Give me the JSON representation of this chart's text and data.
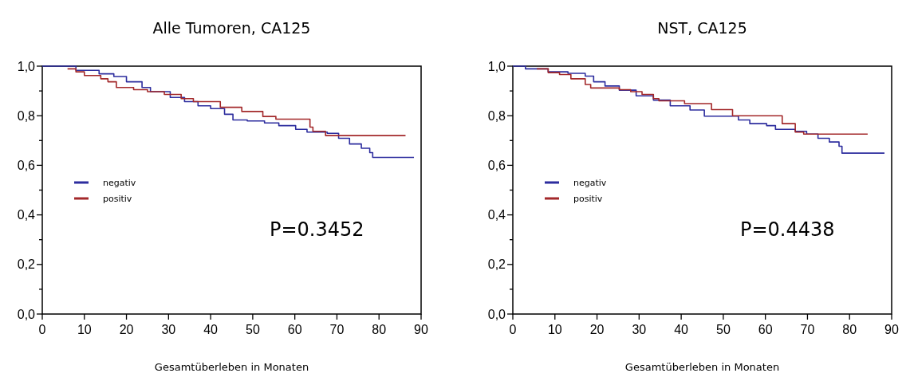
{
  "chart_data": [
    {
      "type": "step",
      "title": "Alle Tumoren, CA125",
      "xlabel": "Gesamtüberleben in Monaten",
      "xlim": [
        0,
        90
      ],
      "xticks": [
        0,
        10,
        20,
        30,
        40,
        50,
        60,
        70,
        80,
        90
      ],
      "ylim": [
        0,
        1
      ],
      "yticks": [
        {
          "value": 0,
          "label": "0,0"
        },
        {
          "value": 0.1,
          "label": null
        },
        {
          "value": 0.2,
          "label": "0,2"
        },
        {
          "value": 0.3,
          "label": null
        },
        {
          "value": 0.4,
          "label": "0,4"
        },
        {
          "value": 0.5,
          "label": null
        },
        {
          "value": 0.6,
          "label": "0,6"
        },
        {
          "value": 0.7,
          "label": null
        },
        {
          "value": 0.8,
          "label": "0,8"
        },
        {
          "value": 0.9,
          "label": null
        },
        {
          "value": 1,
          "label": "1,0"
        }
      ],
      "grid": false,
      "legend": "bottom left",
      "annotations": [
        "P=0.3452"
      ],
      "series": [
        {
          "name": "negativ",
          "color": "#2d2d9e",
          "x": [
            0,
            8,
            13.5,
            17,
            20,
            23.7,
            25.7,
            30.4,
            33.8,
            37,
            40,
            43.3,
            45.3,
            48.7,
            52.8,
            56.2,
            60.2,
            62.9,
            67.7,
            70.4,
            73,
            75.8,
            77.8,
            78.5,
            88.3
          ],
          "values": [
            1,
            0.983,
            0.969,
            0.958,
            0.937,
            0.914,
            0.897,
            0.874,
            0.857,
            0.84,
            0.829,
            0.806,
            0.783,
            0.779,
            0.771,
            0.76,
            0.745,
            0.734,
            0.729,
            0.709,
            0.686,
            0.669,
            0.651,
            0.632,
            0.632
          ]
        },
        {
          "name": "positiv",
          "color": "#a3282a",
          "x": [
            6,
            8,
            10,
            13.9,
            15.6,
            17.6,
            21.7,
            25,
            29,
            33,
            35.9,
            42.3,
            47.4,
            52.4,
            55.5,
            63.6,
            64.3,
            67.3,
            86.3
          ],
          "values": [
            0.989,
            0.977,
            0.962,
            0.949,
            0.937,
            0.914,
            0.905,
            0.897,
            0.886,
            0.869,
            0.857,
            0.834,
            0.817,
            0.797,
            0.786,
            0.754,
            0.737,
            0.72,
            0.72
          ]
        }
      ]
    },
    {
      "type": "step",
      "title": "NST, CA125",
      "xlabel": "Gesamtüberleben in Monaten",
      "xlim": [
        0,
        90
      ],
      "xticks": [
        0,
        10,
        20,
        30,
        40,
        50,
        60,
        70,
        80,
        90
      ],
      "ylim": [
        0,
        1
      ],
      "yticks": [
        {
          "value": 0,
          "label": "0,0"
        },
        {
          "value": 0.1,
          "label": null
        },
        {
          "value": 0.2,
          "label": "0,2"
        },
        {
          "value": 0.3,
          "label": null
        },
        {
          "value": 0.4,
          "label": "0,4"
        },
        {
          "value": 0.5,
          "label": null
        },
        {
          "value": 0.6,
          "label": "0,6"
        },
        {
          "value": 0.7,
          "label": null
        },
        {
          "value": 0.8,
          "label": "0,8"
        },
        {
          "value": 0.9,
          "label": null
        },
        {
          "value": 1,
          "label": "1,0"
        }
      ],
      "grid": false,
      "legend": "bottom left",
      "annotations": [
        "P=0.4438"
      ],
      "series": [
        {
          "name": "negativ",
          "color": "#2d2d9e",
          "x": [
            0,
            3,
            8.4,
            13.1,
            17.2,
            19.2,
            21.9,
            25.3,
            29.3,
            33.4,
            37.4,
            42.1,
            45.5,
            53.6,
            56.3,
            60.3,
            62.4,
            67.1,
            69.8,
            72.5,
            75.2,
            77.5,
            78.2,
            88.3
          ],
          "values": [
            1,
            0.989,
            0.977,
            0.971,
            0.96,
            0.937,
            0.92,
            0.903,
            0.88,
            0.863,
            0.84,
            0.823,
            0.798,
            0.783,
            0.768,
            0.76,
            0.745,
            0.737,
            0.726,
            0.709,
            0.694,
            0.677,
            0.649,
            0.649
          ]
        },
        {
          "name": "positiv",
          "color": "#a3282a",
          "x": [
            5.7,
            8.4,
            11.1,
            13.8,
            17.2,
            18.5,
            25.3,
            28,
            30.7,
            33.4,
            34.7,
            40.8,
            47.2,
            52.2,
            64,
            67.1,
            69.1,
            84.3
          ],
          "values": [
            0.989,
            0.974,
            0.966,
            0.949,
            0.926,
            0.912,
            0.905,
            0.897,
            0.886,
            0.869,
            0.86,
            0.849,
            0.825,
            0.8,
            0.768,
            0.734,
            0.726,
            0.726
          ]
        }
      ]
    }
  ]
}
